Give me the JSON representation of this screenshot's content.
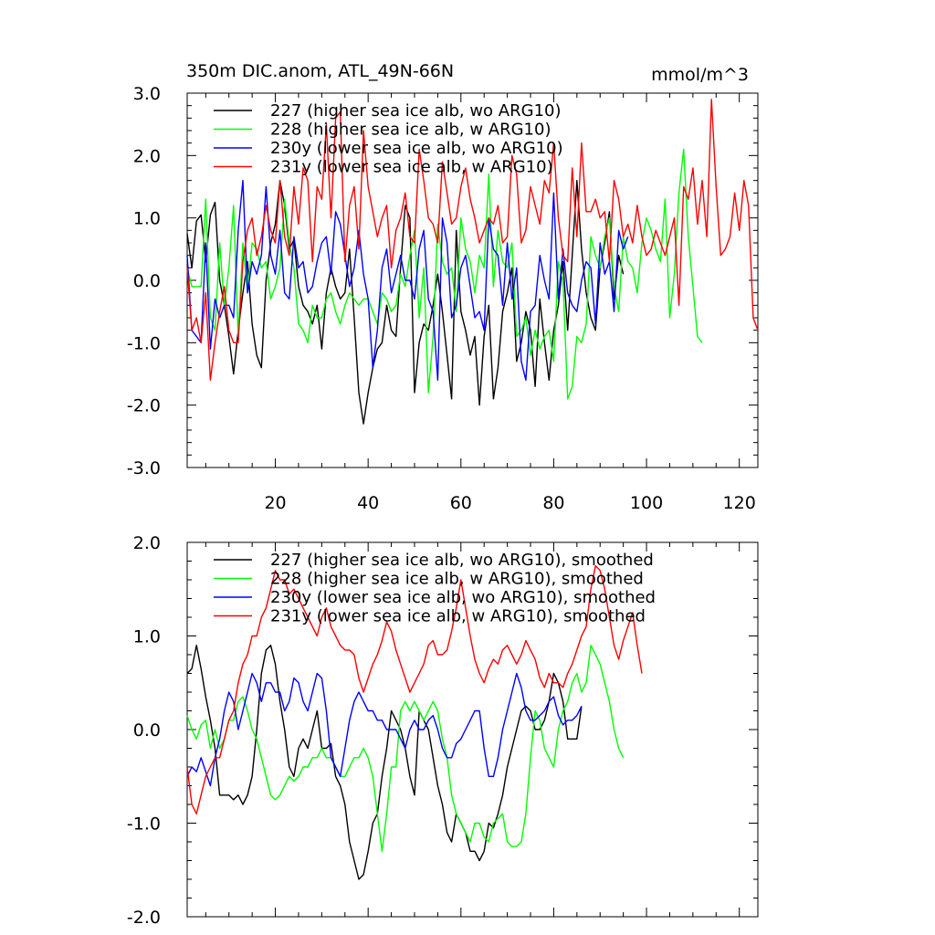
{
  "chart_data": [
    {
      "type": "line",
      "title": "350m DIC.anom, ATL_49N-66N",
      "units": "mmol/m^3",
      "xlim": [
        1,
        124
      ],
      "ylim": [
        -3.0,
        3.0
      ],
      "x_ticks": [
        20,
        40,
        60,
        80,
        100,
        120
      ],
      "x_tick_labels": [
        "20",
        "40",
        "60",
        "80",
        "100",
        "120"
      ],
      "y_ticks": [
        -3.0,
        -2.0,
        -1.0,
        0.0,
        1.0,
        2.0,
        3.0
      ],
      "y_tick_labels": [
        "-3.0",
        "-2.0",
        "-1.0",
        "0.0",
        "1.0",
        "2.0",
        "3.0"
      ],
      "legend_position": "top-left",
      "grid": false,
      "series": [
        {
          "name": "227 (higher sea ice alb, wo ARG10)",
          "color": "#000000",
          "x_start": 1,
          "values": [
            0.75,
            0.2,
            0.95,
            1.05,
            0.3,
            1.05,
            1.25,
            0.0,
            -0.4,
            -0.9,
            -1.5,
            -0.8,
            -0.2,
            0.3,
            -0.7,
            -1.2,
            -1.4,
            0.0,
            0.6,
            0.9,
            1.6,
            1.2,
            0.5,
            0.65,
            -0.1,
            -0.4,
            -0.5,
            -0.7,
            -0.4,
            -1.1,
            -0.2,
            0.2,
            -0.1,
            -0.3,
            -0.2,
            0.5,
            -0.6,
            -1.8,
            -2.3,
            -1.8,
            -1.4,
            -1.1,
            -1.0,
            -0.4,
            -0.8,
            -0.9,
            0.2,
            1.2,
            1.0,
            -1.8,
            -1.0,
            -0.7,
            -0.8,
            -0.4,
            0.1,
            -0.5,
            -1.2,
            -1.9,
            0.8,
            -0.5,
            -0.8,
            -1.2,
            -0.9,
            -2.0,
            -0.9,
            -0.4,
            -1.9,
            -1.4,
            -0.5,
            -0.2,
            0.2,
            -1.3,
            -1.0,
            -0.5,
            -0.8,
            -1.7,
            -0.3,
            -1.0,
            -1.6,
            -0.8,
            -0.4,
            0.3,
            -0.8,
            0.4,
            1.6,
            0.5,
            -0.2,
            -0.6,
            -0.8,
            0.2,
            0.6,
            1.1,
            -0.3,
            0.4,
            0.1
          ]
        },
        {
          "name": "228 (higher sea ice alb, w ARG10)",
          "color": "#00ff00",
          "x_start": 1,
          "values": [
            0.2,
            -0.1,
            -0.1,
            -0.1,
            1.3,
            -0.6,
            -0.8,
            0.6,
            -0.4,
            0.2,
            1.2,
            -0.9,
            0.6,
            -0.2,
            0.6,
            0.5,
            0.2,
            0.3,
            -0.3,
            -0.1,
            0.2,
            1.3,
            0.6,
            0.2,
            -0.7,
            -0.8,
            -1.0,
            -0.4,
            -0.6,
            -0.6,
            -0.3,
            -0.2,
            -0.5,
            -0.7,
            -0.4,
            -0.2,
            -0.3,
            -0.4,
            -0.3,
            -0.3,
            -0.5,
            -0.7,
            -0.2,
            -0.3,
            -0.5,
            -0.4,
            0.1,
            -0.1,
            0.4,
            0.8,
            -0.6,
            0.2,
            -1.8,
            -0.9,
            0.9,
            0.3,
            0.1,
            0.2,
            -0.5,
            1.0,
            0.5,
            0.3,
            -0.2,
            0.4,
            0.2,
            1.7,
            -0.1,
            0.8,
            0.3,
            0.2,
            0.6,
            -0.9,
            -0.8,
            -0.6,
            -1.2,
            -0.8,
            -1.1,
            -0.9,
            -0.8,
            -1.3,
            0.3,
            0.0,
            -1.9,
            -1.7,
            -0.9,
            -1.0,
            -0.7,
            0.7,
            0.4,
            0.2,
            0.7,
            1.0,
            -0.1,
            -0.5,
            0.7,
            0.3,
            0.2,
            -0.2,
            0.6,
            1.0,
            0.8,
            0.5,
            0.3,
            1.3,
            -0.6,
            0.1,
            1.4,
            2.1,
            0.7,
            -0.1,
            -0.9,
            -1.0
          ]
        },
        {
          "name": "230y (lower sea ice alb, wo ARG10)",
          "color": "#0000ff",
          "x_start": 1,
          "values": [
            0.4,
            -0.8,
            -0.9,
            -1.0,
            0.6,
            -1.1,
            -0.3,
            -0.6,
            -0.4,
            -0.4,
            -0.6,
            0.8,
            1.6,
            -0.2,
            0.3,
            0.1,
            0.4,
            1.5,
            0.4,
            0.1,
            0.8,
            -0.2,
            -0.3,
            0.7,
            0.2,
            0.3,
            -0.2,
            -0.1,
            0.3,
            0.6,
            0.7,
            0.1,
            1.1,
            0.9,
            0.4,
            -0.1,
            0.2,
            0.8,
            0.1,
            -0.3,
            -1.4,
            -0.8,
            0.2,
            0.5,
            -0.2,
            0.1,
            0.4,
            0.0,
            0.0,
            -0.3,
            0.5,
            0.8,
            -0.3,
            -0.5,
            -1.6,
            1.0,
            0.6,
            -0.6,
            -0.4,
            0.2,
            0.4,
            -0.1,
            -0.6,
            -0.5,
            -0.8,
            1.0,
            0.5,
            0.4,
            -0.4,
            0.6,
            -0.3,
            0.2,
            -1.3,
            -1.6,
            -0.5,
            -0.4,
            0.4,
            0.0,
            -0.3,
            1.4,
            -0.3,
            0.5,
            -0.2,
            -0.4,
            -0.5,
            0.0,
            0.3,
            0.2,
            -0.7,
            0.6,
            0.1,
            0.3,
            -0.5,
            0.8,
            0.5,
            0.7
          ]
        },
        {
          "name": "231y (lower sea ice alb, w ARG10)",
          "color": "#ff0000",
          "x_start": 1,
          "values": [
            0.2,
            -0.8,
            -0.6,
            -1.0,
            -0.2,
            -1.6,
            -1.0,
            -0.5,
            -0.1,
            -0.8,
            -1.0,
            -1.0,
            0.3,
            0.8,
            1.0,
            0.4,
            0.7,
            1.2,
            0.8,
            0.6,
            1.6,
            0.7,
            0.4,
            1.5,
            0.9,
            1.8,
            1.6,
            0.3,
            1.5,
            1.3,
            2.5,
            1.0,
            2.6,
            2.7,
            0.3,
            1.2,
            1.5,
            0.5,
            2.4,
            1.5,
            1.1,
            0.7,
            1.0,
            1.2,
            0.2,
            0.8,
            1.0,
            1.4,
            0.7,
            0.6,
            2.1,
            1.6,
            1.0,
            0.9,
            0.6,
            1.9,
            1.4,
            0.9,
            1.0,
            1.5,
            1.8,
            1.3,
            1.0,
            0.6,
            0.8,
            1.0,
            0.9,
            1.2,
            0.6,
            0.7,
            2.0,
            1.7,
            0.6,
            0.8,
            1.5,
            1.2,
            0.9,
            1.6,
            1.4,
            2.2,
            1.0,
            0.4,
            0.3,
            1.8,
            0.7,
            2.2,
            1.1,
            1.1,
            1.3,
            1.0,
            1.1,
            0.3,
            1.6,
            1.3,
            0.7,
            0.9,
            0.6,
            1.2,
            0.7,
            0.4,
            0.5,
            0.8,
            0.6,
            0.4,
            0.7,
            1.0,
            -0.4,
            1.5,
            1.3,
            1.8,
            0.9,
            1.6,
            0.7,
            2.9,
            1.5,
            0.4,
            0.5,
            0.7,
            1.4,
            0.8,
            1.6,
            1.2,
            -0.6,
            -0.8
          ]
        }
      ]
    },
    {
      "type": "line",
      "title": "",
      "xlim": [
        1,
        124
      ],
      "ylim": [
        -2.0,
        2.0
      ],
      "x_ticks": [
        20,
        40,
        60,
        80,
        100,
        120
      ],
      "y_ticks": [
        -2.0,
        -1.0,
        0.0,
        1.0,
        2.0
      ],
      "y_tick_labels": [
        "-2.0",
        "-1.0",
        "0.0",
        "1.0",
        "2.0"
      ],
      "legend_position": "top-left",
      "grid": false,
      "series": [
        {
          "name": "227 (higher sea ice alb, wo ARG10), smoothed",
          "color": "#000000",
          "x_start": 1,
          "values": [
            0.6,
            0.65,
            0.9,
            0.65,
            0.35,
            0.1,
            -0.2,
            -0.7,
            -0.7,
            -0.7,
            -0.75,
            -0.7,
            -0.8,
            -0.7,
            -0.5,
            0.0,
            0.6,
            0.85,
            0.9,
            0.7,
            0.3,
            0.0,
            -0.4,
            -0.5,
            -0.2,
            -0.1,
            -0.2,
            0.0,
            0.2,
            -0.2,
            -0.2,
            -0.15,
            -0.5,
            -0.6,
            -0.8,
            -1.2,
            -1.4,
            -1.6,
            -1.55,
            -1.3,
            -1.0,
            -0.9,
            -0.5,
            -0.2,
            0.2,
            0.1,
            0.0,
            -0.2,
            -0.5,
            -0.7,
            0.2,
            0.1,
            0.0,
            -0.3,
            -0.6,
            -0.8,
            -1.1,
            -1.2,
            -0.9,
            -1.0,
            -1.1,
            -1.3,
            -1.3,
            -1.4,
            -1.3,
            -1.0,
            -1.05,
            -0.9,
            -0.7,
            -0.4,
            -0.2,
            0.0,
            0.2,
            0.25,
            0.2,
            0.0,
            0.0,
            0.1,
            0.3,
            0.6,
            0.5,
            0.3,
            -0.1,
            -0.1,
            -0.1,
            0.25
          ]
        },
        {
          "name": "228 (higher sea ice alb, w ARG10), smoothed",
          "color": "#00ff00",
          "x_start": 1,
          "values": [
            0.15,
            0.0,
            -0.1,
            0.05,
            0.1,
            -0.2,
            0.0,
            -0.2,
            -0.1,
            0.1,
            0.1,
            0.3,
            0.35,
            0.2,
            0.0,
            -0.1,
            -0.3,
            -0.5,
            -0.7,
            -0.75,
            -0.7,
            -0.6,
            -0.5,
            -0.55,
            -0.5,
            -0.4,
            -0.4,
            -0.3,
            -0.3,
            -0.2,
            -0.3,
            -0.3,
            -0.4,
            -0.5,
            -0.5,
            -0.4,
            -0.3,
            -0.3,
            -0.2,
            -0.3,
            -0.5,
            -0.9,
            -1.3,
            -0.9,
            -0.4,
            -0.4,
            0.2,
            0.3,
            0.2,
            0.3,
            0.2,
            0.1,
            0.2,
            0.3,
            0.2,
            -0.1,
            -0.3,
            -0.7,
            -0.9,
            -1.0,
            -1.1,
            -1.2,
            -1.0,
            -1.0,
            -1.15,
            -1.2,
            -1.0,
            -0.95,
            -0.9,
            -1.2,
            -1.25,
            -1.25,
            -1.2,
            -0.9,
            -0.3,
            0.2,
            0.1,
            -0.2,
            -0.3,
            -0.4,
            0.0,
            0.2,
            0.3,
            0.5,
            0.6,
            0.4,
            0.5,
            0.9,
            0.8,
            0.7,
            0.5,
            0.3,
            0.0,
            -0.2,
            -0.3
          ]
        },
        {
          "name": "230y (lower sea ice alb, wo ARG10), smoothed",
          "color": "#0000ff",
          "x_start": 1,
          "values": [
            -0.5,
            -0.4,
            -0.45,
            -0.3,
            -0.45,
            -0.6,
            -0.3,
            -0.1,
            0.2,
            0.4,
            0.3,
            0.0,
            0.2,
            0.4,
            0.6,
            0.5,
            0.3,
            0.5,
            0.5,
            0.4,
            0.4,
            0.2,
            0.3,
            0.55,
            0.5,
            0.3,
            0.2,
            0.4,
            0.6,
            0.55,
            0.2,
            -0.3,
            -0.4,
            -0.5,
            -0.2,
            0.1,
            0.3,
            0.4,
            0.3,
            0.2,
            0.2,
            0.1,
            0.1,
            0.0,
            0.0,
            0.0,
            -0.1,
            -0.2,
            0.0,
            0.1,
            0.0,
            0.0,
            0.1,
            0.15,
            0.0,
            -0.2,
            -0.3,
            -0.3,
            -0.15,
            -0.1,
            0.0,
            0.1,
            0.2,
            0.2,
            -0.2,
            -0.5,
            -0.5,
            -0.3,
            0.0,
            0.2,
            0.4,
            0.6,
            0.45,
            0.2,
            0.1,
            0.1,
            0.15,
            0.2,
            0.3,
            0.35,
            0.15,
            0.05,
            0.1,
            0.1,
            0.15,
            0.25
          ]
        },
        {
          "name": "231y (lower sea ice alb, w ARG10), smoothed",
          "color": "#ff0000",
          "x_start": 1,
          "values": [
            -0.4,
            -0.8,
            -0.9,
            -0.7,
            -0.5,
            -0.4,
            -0.3,
            -0.3,
            -0.1,
            0.1,
            0.2,
            0.5,
            0.7,
            0.8,
            1.0,
            1.0,
            1.2,
            1.3,
            1.5,
            1.7,
            1.6,
            1.6,
            1.45,
            1.5,
            1.4,
            1.3,
            1.2,
            1.1,
            1.0,
            1.2,
            1.3,
            1.1,
            1.0,
            0.9,
            0.85,
            0.85,
            0.8,
            0.55,
            0.4,
            0.55,
            0.7,
            0.8,
            0.95,
            1.15,
            1.05,
            0.85,
            0.7,
            0.55,
            0.4,
            0.5,
            0.6,
            0.7,
            0.9,
            0.95,
            0.8,
            0.8,
            0.85,
            1.05,
            1.3,
            1.6,
            1.3,
            1.0,
            0.75,
            0.6,
            0.5,
            0.65,
            0.75,
            0.7,
            0.85,
            0.9,
            0.8,
            0.7,
            0.8,
            0.95,
            0.85,
            0.75,
            0.55,
            0.45,
            0.6,
            0.5,
            0.5,
            0.45,
            0.6,
            0.7,
            0.85,
            1.0,
            1.1,
            1.5,
            1.75,
            1.7,
            1.5,
            1.2,
            0.9,
            0.75,
            0.95,
            1.1,
            1.25,
            0.9,
            0.6
          ]
        }
      ]
    }
  ]
}
